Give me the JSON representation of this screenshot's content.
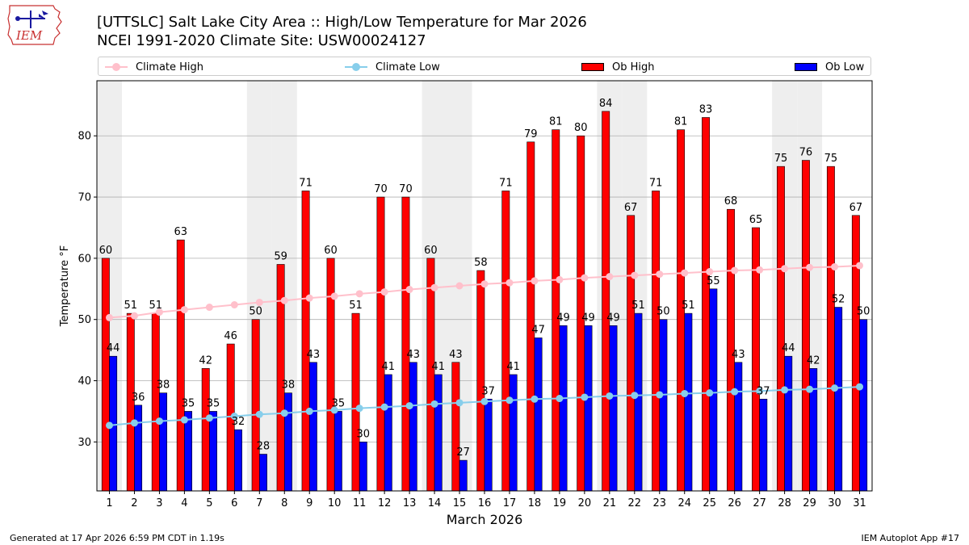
{
  "header": {
    "title_line1": "[UTTSLC] Salt Lake City Area :: High/Low Temperature for Mar 2026",
    "title_line2": "NCEI 1991-2020 Climate Site: USW00024127",
    "logo_text": "IEM"
  },
  "legend": {
    "climate_high": "Climate High",
    "climate_low": "Climate Low",
    "ob_high": "Ob High",
    "ob_low": "Ob Low"
  },
  "colors": {
    "ob_high": "#ff0000",
    "ob_low": "#0000ff",
    "climate_high": "#ffc0cb",
    "climate_low": "#87ceeb",
    "weekend_shade": "#eeeeee",
    "grid": "#b0b0b0"
  },
  "chart_data": {
    "type": "bar",
    "xlabel": "March 2026",
    "ylabel": "Temperature °F",
    "ylim": [
      22,
      89
    ],
    "yticks": [
      30,
      40,
      50,
      60,
      70,
      80
    ],
    "grid": "horizontal",
    "legend_position": "top",
    "categories": [
      "1",
      "2",
      "3",
      "4",
      "5",
      "6",
      "7",
      "8",
      "9",
      "10",
      "11",
      "12",
      "13",
      "14",
      "15",
      "16",
      "17",
      "18",
      "19",
      "20",
      "21",
      "22",
      "23",
      "24",
      "25",
      "26",
      "27",
      "28",
      "29",
      "30",
      "31"
    ],
    "shaded_days": [
      1,
      7,
      8,
      14,
      15,
      21,
      22,
      28,
      29
    ],
    "series": [
      {
        "name": "Ob High",
        "kind": "bar",
        "values": [
          60,
          51,
          51,
          63,
          42,
          46,
          50,
          59,
          71,
          60,
          51,
          70,
          70,
          60,
          43,
          58,
          71,
          79,
          81,
          80,
          84,
          67,
          71,
          81,
          83,
          68,
          65,
          75,
          76,
          75,
          67
        ]
      },
      {
        "name": "Ob Low",
        "kind": "bar",
        "values": [
          44,
          36,
          38,
          35,
          35,
          32,
          28,
          38,
          43,
          35,
          30,
          41,
          43,
          41,
          27,
          37,
          41,
          47,
          49,
          49,
          49,
          51,
          50,
          51,
          55,
          43,
          37,
          44,
          42,
          52,
          50
        ]
      },
      {
        "name": "Climate High",
        "kind": "line",
        "values": [
          50.3,
          50.6,
          51.2,
          51.6,
          52.0,
          52.4,
          52.8,
          53.1,
          53.5,
          53.8,
          54.2,
          54.5,
          54.9,
          55.2,
          55.5,
          55.8,
          56.0,
          56.3,
          56.5,
          56.8,
          57.0,
          57.2,
          57.4,
          57.6,
          57.8,
          58.0,
          58.1,
          58.3,
          58.5,
          58.6,
          58.8
        ]
      },
      {
        "name": "Climate Low",
        "kind": "line",
        "values": [
          32.7,
          33.1,
          33.4,
          33.6,
          33.9,
          34.2,
          34.5,
          34.7,
          35.0,
          35.2,
          35.5,
          35.7,
          35.9,
          36.2,
          36.4,
          36.6,
          36.8,
          37.0,
          37.1,
          37.3,
          37.5,
          37.6,
          37.7,
          37.9,
          38.0,
          38.2,
          38.3,
          38.5,
          38.6,
          38.8,
          39.0
        ]
      }
    ]
  },
  "footer": {
    "generated": "Generated at 17 Apr 2026 6:59 PM CDT in 1.19s",
    "app": "IEM Autoplot App #17"
  }
}
